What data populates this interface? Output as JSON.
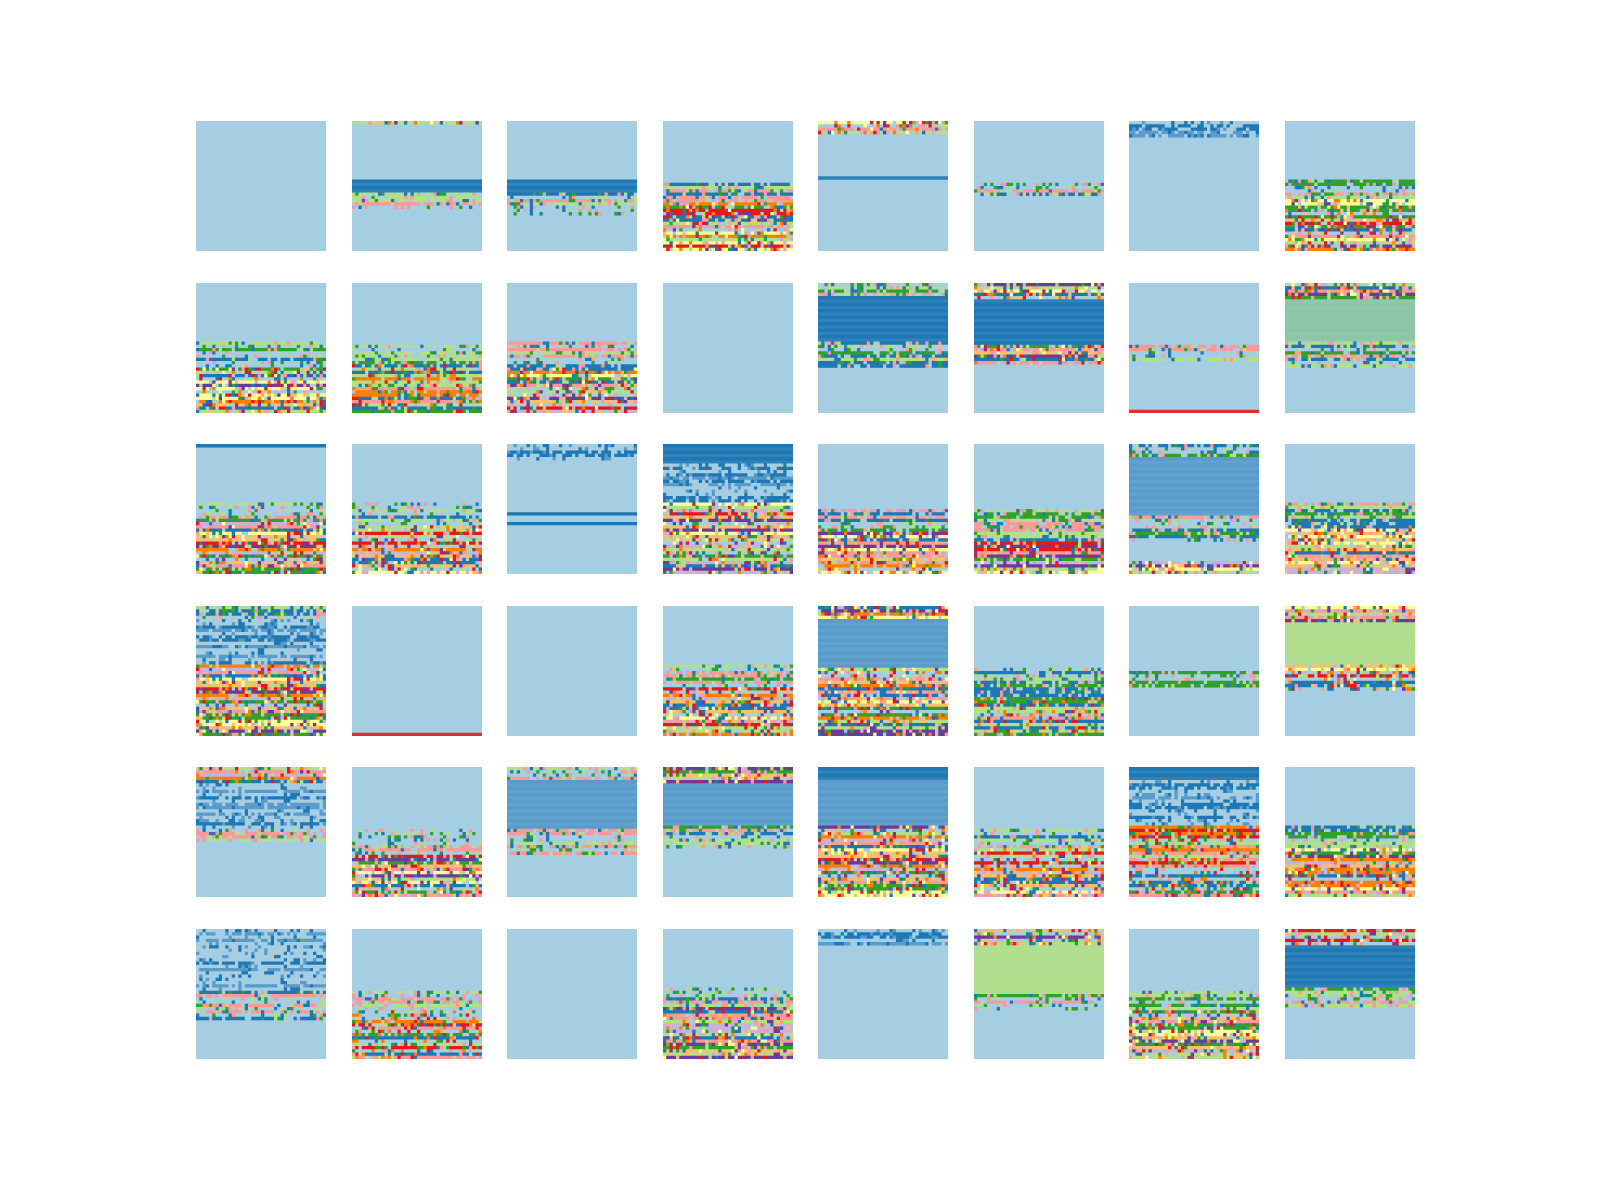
{
  "chart_data": {
    "type": "heatmap",
    "title": "",
    "grid": {
      "rows": 6,
      "cols": 8
    },
    "axes_visible": false,
    "background_color": "#a6cee3",
    "colormap": "Paired",
    "palette": {
      "lb": "#a6cee3",
      "db": "#1f78b4",
      "mb": "#5a9bcb",
      "lg": "#b2df8a",
      "dg": "#33a02c",
      "pk": "#fb9a99",
      "rd": "#e31a1c",
      "po": "#fdbf6f",
      "or": "#ff7f00",
      "lp": "#cab2d6",
      "pu": "#6a3d9a",
      "yl": "#ffff99",
      "mg": "#8cc6a5"
    },
    "panels": [
      [
        {
          "row": 0,
          "col": 0,
          "bands": []
        },
        {
          "row": 0,
          "col": 1,
          "bands": [
            [
              0,
              0.03,
              "noisy"
            ],
            [
              0.45,
              0.55,
              "db"
            ],
            [
              0.55,
              0.68,
              "noisy_greens"
            ]
          ]
        },
        {
          "row": 0,
          "col": 2,
          "bands": [
            [
              0.45,
              0.55,
              "db"
            ],
            [
              0.55,
              0.72,
              "noisy_greens"
            ]
          ]
        },
        {
          "row": 0,
          "col": 3,
          "bands": [
            [
              0.48,
              0.62,
              "noisy_greens"
            ],
            [
              0.62,
              1.0,
              "noisy"
            ]
          ]
        },
        {
          "row": 0,
          "col": 4,
          "bands": [
            [
              0,
              0.11,
              "noisy"
            ],
            [
              0.43,
              0.46,
              "db"
            ]
          ]
        },
        {
          "row": 0,
          "col": 5,
          "bands": [
            [
              0.48,
              0.58,
              "noisy_greens"
            ]
          ]
        },
        {
          "row": 0,
          "col": 6,
          "bands": [
            [
              0,
              0.12,
              "noisy_blues"
            ]
          ]
        },
        {
          "row": 0,
          "col": 7,
          "bands": [
            [
              0.45,
              0.6,
              "noisy_greens"
            ],
            [
              0.6,
              1.0,
              "noisy"
            ]
          ]
        }
      ],
      [
        {
          "row": 1,
          "col": 0,
          "bands": [
            [
              0.45,
              0.65,
              "noisy_greens"
            ],
            [
              0.65,
              1.0,
              "noisy"
            ]
          ]
        },
        {
          "row": 1,
          "col": 1,
          "bands": [
            [
              0.48,
              0.62,
              "noisy_greens"
            ],
            [
              0.62,
              1.0,
              "noisy_mixed"
            ]
          ]
        },
        {
          "row": 1,
          "col": 2,
          "bands": [
            [
              0.45,
              0.65,
              "noisy_greens"
            ],
            [
              0.65,
              1.0,
              "noisy"
            ]
          ]
        },
        {
          "row": 1,
          "col": 3,
          "bands": []
        },
        {
          "row": 1,
          "col": 4,
          "bands": [
            [
              0,
              0.1,
              "noisy_greens"
            ],
            [
              0.1,
              0.45,
              "db"
            ],
            [
              0.45,
              0.65,
              "noisy_greens"
            ]
          ]
        },
        {
          "row": 1,
          "col": 5,
          "bands": [
            [
              0,
              0.12,
              "noisy"
            ],
            [
              0.12,
              0.48,
              "db"
            ],
            [
              0.48,
              0.62,
              "noisy"
            ]
          ]
        },
        {
          "row": 1,
          "col": 6,
          "bands": [
            [
              0.48,
              0.6,
              "noisy_greens"
            ],
            [
              0.97,
              1.0,
              "rd"
            ]
          ]
        },
        {
          "row": 1,
          "col": 7,
          "bands": [
            [
              0,
              0.12,
              "noisy"
            ],
            [
              0.12,
              0.45,
              "mg"
            ],
            [
              0.45,
              0.65,
              "noisy_greens"
            ]
          ]
        }
      ],
      [
        {
          "row": 2,
          "col": 0,
          "bands": [
            [
              0,
              0.03,
              "db"
            ],
            [
              0.45,
              0.6,
              "noisy_greens"
            ],
            [
              0.6,
              1.0,
              "noisy"
            ]
          ]
        },
        {
          "row": 2,
          "col": 1,
          "bands": [
            [
              0.45,
              0.62,
              "noisy_greens"
            ],
            [
              0.62,
              1.0,
              "noisy"
            ]
          ]
        },
        {
          "row": 2,
          "col": 2,
          "bands": [
            [
              0,
              0.12,
              "noisy_blues"
            ],
            [
              0.48,
              0.65,
              "db_lines"
            ]
          ]
        },
        {
          "row": 2,
          "col": 3,
          "bands": [
            [
              0,
              0.15,
              "db"
            ],
            [
              0.15,
              0.45,
              "noisy_blues"
            ],
            [
              0.45,
              1.0,
              "noisy"
            ]
          ]
        },
        {
          "row": 2,
          "col": 4,
          "bands": [
            [
              0.5,
              0.68,
              "noisy_greens"
            ],
            [
              0.68,
              1.0,
              "noisy"
            ]
          ]
        },
        {
          "row": 2,
          "col": 5,
          "bands": [
            [
              0.5,
              0.75,
              "noisy_greens"
            ],
            [
              0.75,
              1.0,
              "noisy"
            ]
          ]
        },
        {
          "row": 2,
          "col": 6,
          "bands": [
            [
              0,
              0.1,
              "noisy_greens"
            ],
            [
              0.1,
              0.55,
              "mb"
            ],
            [
              0.55,
              0.75,
              "noisy_greens"
            ],
            [
              0.9,
              1.0,
              "noisy"
            ]
          ]
        },
        {
          "row": 2,
          "col": 7,
          "bands": [
            [
              0.45,
              0.62,
              "noisy_greens"
            ],
            [
              0.62,
              1.0,
              "noisy"
            ]
          ]
        }
      ],
      [
        {
          "row": 3,
          "col": 0,
          "bands": [
            [
              0,
              0.1,
              "noisy_greens"
            ],
            [
              0.1,
              0.45,
              "noisy_blues"
            ],
            [
              0.45,
              1.0,
              "noisy"
            ]
          ]
        },
        {
          "row": 3,
          "col": 1,
          "bands": [
            [
              0.97,
              1.0,
              "rd"
            ]
          ]
        },
        {
          "row": 3,
          "col": 2,
          "bands": []
        },
        {
          "row": 3,
          "col": 3,
          "bands": [
            [
              0.45,
              0.62,
              "noisy_greens"
            ],
            [
              0.62,
              1.0,
              "noisy"
            ]
          ]
        },
        {
          "row": 3,
          "col": 4,
          "bands": [
            [
              0,
              0.1,
              "noisy"
            ],
            [
              0.1,
              0.48,
              "mb"
            ],
            [
              0.48,
              1.0,
              "noisy"
            ]
          ]
        },
        {
          "row": 3,
          "col": 5,
          "bands": [
            [
              0.48,
              0.7,
              "noisy_greens"
            ],
            [
              0.7,
              1.0,
              "noisy_mixed"
            ]
          ]
        },
        {
          "row": 3,
          "col": 6,
          "bands": [
            [
              0.5,
              0.62,
              "noisy_greens"
            ]
          ]
        },
        {
          "row": 3,
          "col": 7,
          "bands": [
            [
              0,
              0.12,
              "noisy"
            ],
            [
              0.12,
              0.45,
              "lg"
            ],
            [
              0.45,
              0.65,
              "noisy"
            ]
          ]
        }
      ],
      [
        {
          "row": 4,
          "col": 0,
          "bands": [
            [
              0,
              0.12,
              "noisy"
            ],
            [
              0.12,
              0.48,
              "noisy_blues"
            ],
            [
              0.48,
              0.58,
              "noisy_greens"
            ]
          ]
        },
        {
          "row": 4,
          "col": 1,
          "bands": [
            [
              0.48,
              0.68,
              "noisy_greens"
            ],
            [
              0.68,
              1.0,
              "noisy"
            ]
          ]
        },
        {
          "row": 4,
          "col": 2,
          "bands": [
            [
              0,
              0.1,
              "noisy_greens"
            ],
            [
              0.1,
              0.48,
              "mb"
            ],
            [
              0.48,
              0.68,
              "noisy_greens"
            ]
          ]
        },
        {
          "row": 4,
          "col": 3,
          "bands": [
            [
              0,
              0.12,
              "noisy"
            ],
            [
              0.12,
              0.45,
              "mb"
            ],
            [
              0.45,
              0.62,
              "noisy_greens"
            ]
          ]
        },
        {
          "row": 4,
          "col": 4,
          "bands": [
            [
              0,
              0.1,
              "db"
            ],
            [
              0.1,
              0.45,
              "mb"
            ],
            [
              0.45,
              1.0,
              "noisy"
            ]
          ]
        },
        {
          "row": 4,
          "col": 5,
          "bands": [
            [
              0.48,
              0.62,
              "noisy_greens"
            ],
            [
              0.62,
              1.0,
              "noisy"
            ]
          ]
        },
        {
          "row": 4,
          "col": 6,
          "bands": [
            [
              0,
              0.1,
              "db"
            ],
            [
              0.1,
              0.45,
              "noisy_blues"
            ],
            [
              0.45,
              1.0,
              "noisy_mixed"
            ]
          ]
        },
        {
          "row": 4,
          "col": 7,
          "bands": [
            [
              0.45,
              0.62,
              "noisy_greens"
            ],
            [
              0.62,
              1.0,
              "noisy"
            ]
          ]
        }
      ],
      [
        {
          "row": 5,
          "col": 0,
          "bands": [
            [
              0,
              0.12,
              "noisy_blues"
            ],
            [
              0.12,
              0.48,
              "noisy_blues"
            ],
            [
              0.48,
              0.7,
              "noisy_greens"
            ]
          ]
        },
        {
          "row": 5,
          "col": 1,
          "bands": [
            [
              0.48,
              0.62,
              "noisy_greens"
            ],
            [
              0.62,
              1.0,
              "noisy_mixed"
            ]
          ]
        },
        {
          "row": 5,
          "col": 2,
          "bands": []
        },
        {
          "row": 5,
          "col": 3,
          "bands": [
            [
              0.45,
              0.6,
              "noisy_greens"
            ],
            [
              0.6,
              1.0,
              "noisy"
            ]
          ]
        },
        {
          "row": 5,
          "col": 4,
          "bands": [
            [
              0,
              0.12,
              "noisy_blues"
            ]
          ]
        },
        {
          "row": 5,
          "col": 5,
          "bands": [
            [
              0,
              0.12,
              "noisy"
            ],
            [
              0.12,
              0.5,
              "lg"
            ],
            [
              0.5,
              0.62,
              "noisy_greens"
            ]
          ]
        },
        {
          "row": 5,
          "col": 6,
          "bands": [
            [
              0.48,
              0.62,
              "noisy_greens"
            ],
            [
              0.62,
              1.0,
              "noisy"
            ]
          ]
        },
        {
          "row": 5,
          "col": 7,
          "bands": [
            [
              0,
              0.12,
              "noisy"
            ],
            [
              0.12,
              0.45,
              "db"
            ],
            [
              0.45,
              0.6,
              "noisy_greens"
            ]
          ]
        }
      ]
    ]
  }
}
